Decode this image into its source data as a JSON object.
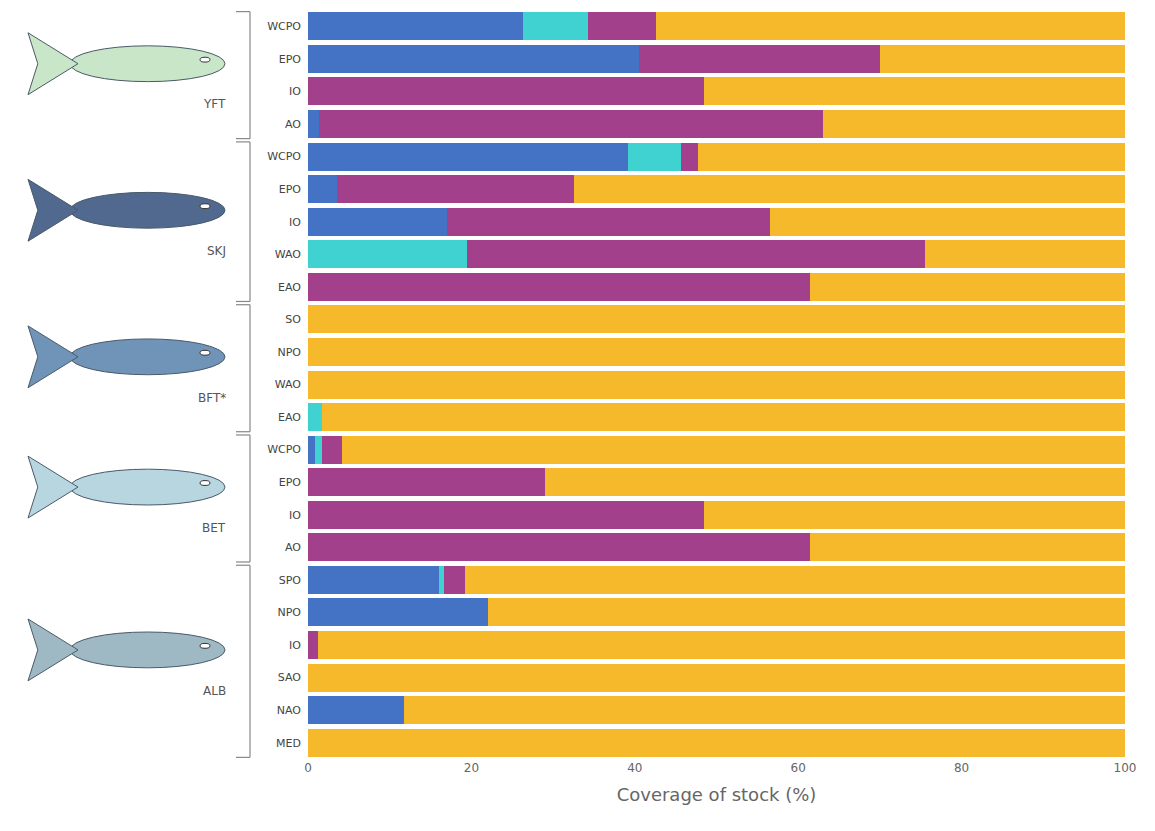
{
  "chart_data": {
    "type": "bar",
    "orientation": "horizontal",
    "stacked": true,
    "grid": false,
    "xlabel": "Coverage of stock (%)",
    "xlim": [
      0,
      100
    ],
    "xticks": [
      0,
      20,
      40,
      60,
      80,
      100
    ],
    "categories": [
      "WCPO",
      "EPO",
      "IO",
      "AO",
      "WCPO",
      "EPO",
      "IO",
      "WAO",
      "EAO",
      "SO",
      "NPO",
      "WAO",
      "EAO",
      "WCPO",
      "EPO",
      "IO",
      "AO",
      "SPO",
      "NPO",
      "IO",
      "SAO",
      "NAO",
      "MED"
    ],
    "groups": [
      {
        "label": "YFT",
        "size": 4
      },
      {
        "label": "SKJ",
        "size": 5
      },
      {
        "label": "BFT*",
        "size": 4
      },
      {
        "label": "BET",
        "size": 4
      },
      {
        "label": "ALB",
        "size": 6
      }
    ],
    "series": [
      {
        "color": "#4472c4",
        "values": [
          26.3,
          40.5,
          0,
          1.3,
          39.2,
          3.5,
          17,
          0,
          0,
          0,
          0,
          0,
          0,
          0.9,
          0,
          0,
          0,
          16,
          22,
          0,
          0,
          11.8,
          0
        ]
      },
      {
        "color": "#40d2d0",
        "values": [
          8,
          0,
          0,
          0,
          6.4,
          0,
          0,
          19.5,
          0,
          0,
          0,
          0,
          1.7,
          0.8,
          0,
          0,
          0,
          0.6,
          0,
          0,
          0,
          0,
          0
        ]
      },
      {
        "color": "#a3408c",
        "values": [
          8.3,
          29.5,
          48.5,
          61.7,
          2.1,
          29,
          39.5,
          56,
          61.5,
          0,
          0,
          0,
          0,
          2.5,
          29,
          48.5,
          61.5,
          2.6,
          0,
          1.2,
          0,
          0,
          0
        ]
      },
      {
        "color": "#f6b92b",
        "values": [
          57.4,
          30,
          51.5,
          37,
          52.3,
          67.5,
          43.5,
          24.5,
          38.5,
          100,
          100,
          100,
          98.3,
          95.8,
          71,
          51.5,
          38.5,
          80.8,
          78,
          98.8,
          100,
          88.2,
          100
        ]
      }
    ]
  }
}
